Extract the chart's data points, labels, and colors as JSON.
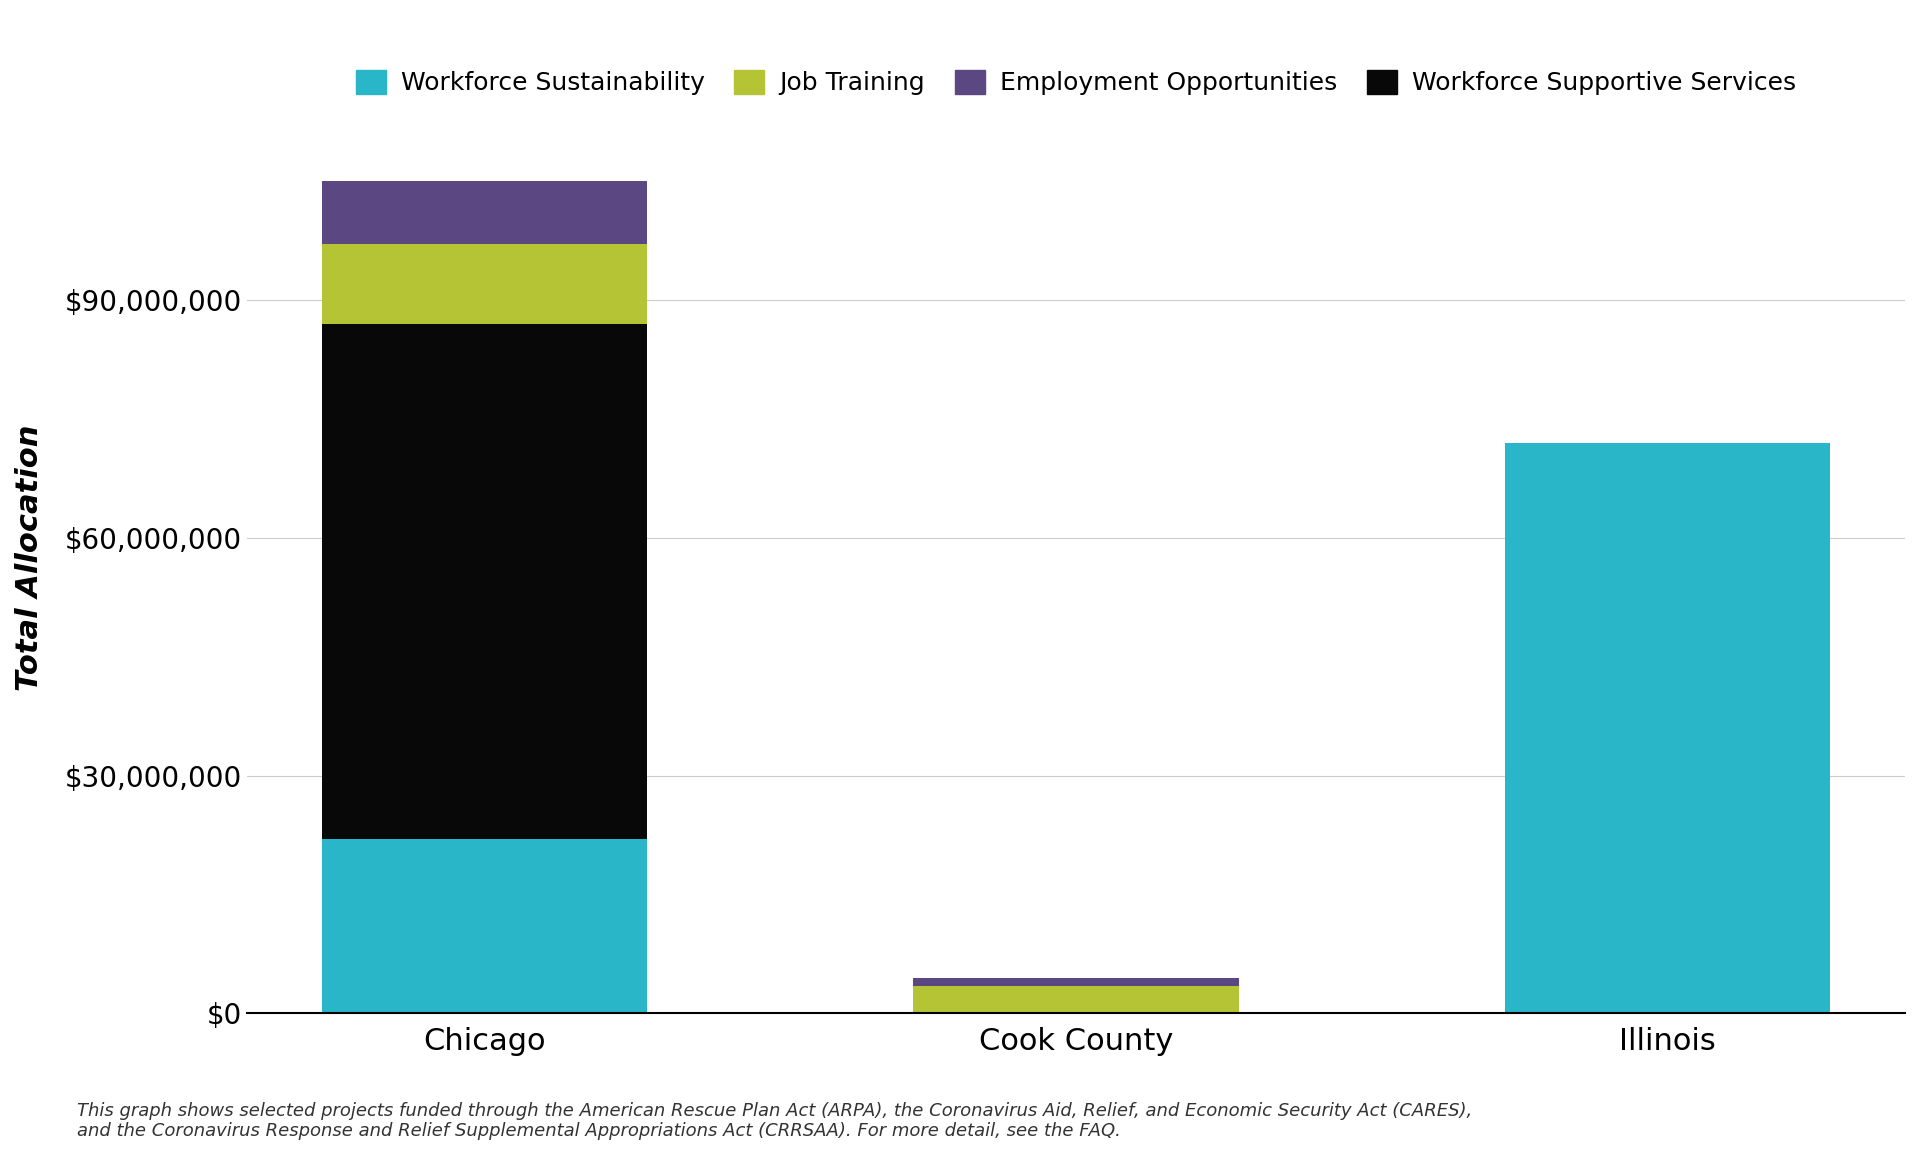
{
  "categories": [
    "Chicago",
    "Cook County",
    "Illinois"
  ],
  "series": [
    {
      "label": "Workforce Sustainability",
      "color": "#29b6c8",
      "values": [
        22000000,
        0,
        72000000
      ]
    },
    {
      "label": "Workforce Supportive Services",
      "color": "#080808",
      "values": [
        65000000,
        0,
        0
      ]
    },
    {
      "label": "Job Training",
      "color": "#b5c435",
      "values": [
        10000000,
        3500000,
        0
      ]
    },
    {
      "label": "Employment Opportunities",
      "color": "#5b4882",
      "values": [
        8000000,
        1000000,
        0
      ]
    }
  ],
  "legend_order": [
    0,
    2,
    3,
    1
  ],
  "ylabel": "Total Allocation",
  "ylim": [
    0,
    115000000
  ],
  "yticks": [
    0,
    30000000,
    60000000,
    90000000
  ],
  "ytick_labels": [
    "$0",
    "$30,000,000",
    "$60,000,000",
    "$90,000,000"
  ],
  "bar_width": 0.55,
  "background_color": "#ffffff",
  "grid_color": "#cccccc",
  "footnote": "This graph shows selected projects funded through the American Rescue Plan Act (ARPA), the Coronavirus Aid, Relief, and Economic Security Act (CARES),\nand the Coronavirus Response and Relief Supplemental Appropriations Act (CRRSAA). For more detail, see the FAQ."
}
